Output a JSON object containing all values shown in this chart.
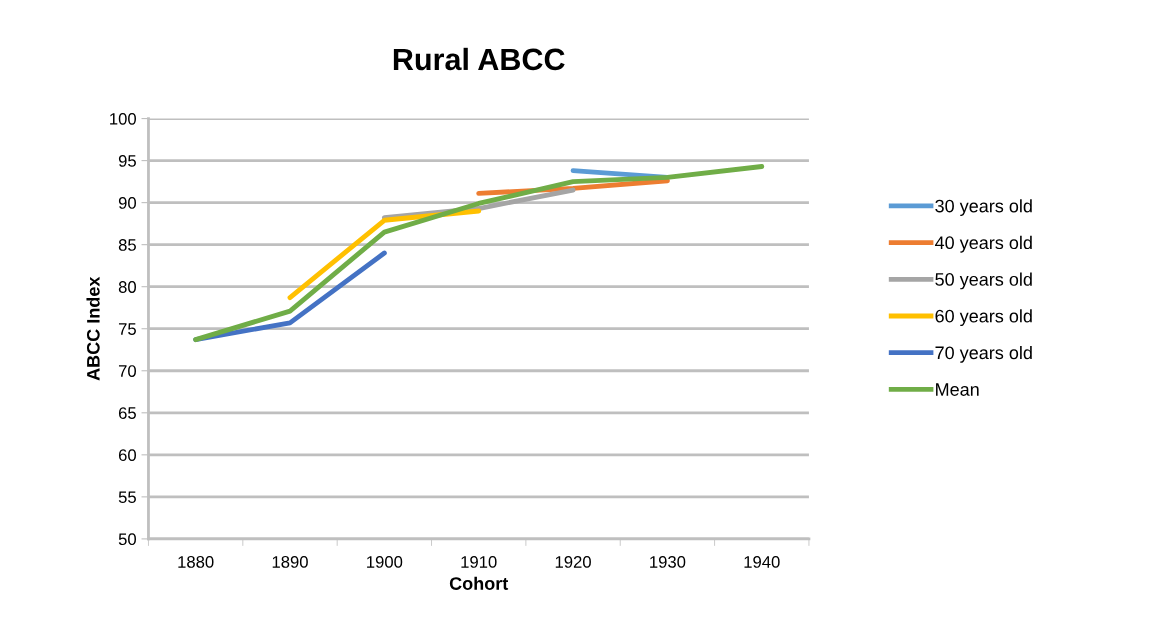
{
  "chart_data": {
    "type": "line",
    "title": "Rural ABCC",
    "xlabel": "Cohort",
    "ylabel": "ABCC Index",
    "categories": [
      "1880",
      "1890",
      "1900",
      "1910",
      "1920",
      "1930",
      "1940"
    ],
    "series": [
      {
        "name": "30 years old",
        "color": "#5b9bd5",
        "values": [
          null,
          null,
          null,
          null,
          93.8,
          93.0,
          null
        ]
      },
      {
        "name": "40 years old",
        "color": "#ed7d31",
        "values": [
          null,
          null,
          null,
          91.1,
          91.7,
          92.6,
          null
        ]
      },
      {
        "name": "50 years old",
        "color": "#a5a5a5",
        "values": [
          null,
          null,
          88.2,
          89.3,
          91.5,
          null,
          null
        ]
      },
      {
        "name": "60 years old",
        "color": "#ffc000",
        "values": [
          null,
          78.7,
          87.9,
          89.0,
          null,
          null,
          null
        ]
      },
      {
        "name": "70 years old",
        "color": "#4472c4",
        "values": [
          73.7,
          75.7,
          84.0,
          null,
          null,
          null,
          null
        ]
      },
      {
        "name": "Mean",
        "color": "#70ad47",
        "values": [
          73.7,
          77.1,
          86.5,
          89.9,
          92.5,
          93.0,
          94.3
        ]
      }
    ],
    "ylim": [
      50,
      100
    ],
    "yticks": [
      50,
      55,
      60,
      65,
      70,
      75,
      80,
      85,
      90,
      95,
      100
    ],
    "grid": "y",
    "legend": "right",
    "marker": "none",
    "line_style": "solid"
  }
}
